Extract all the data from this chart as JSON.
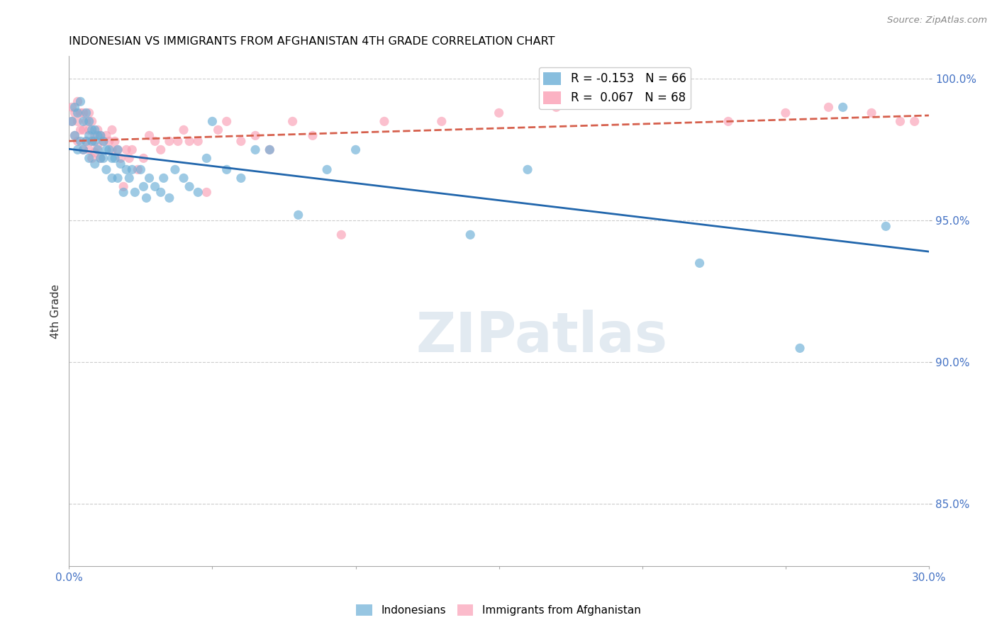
{
  "title": "INDONESIAN VS IMMIGRANTS FROM AFGHANISTAN 4TH GRADE CORRELATION CHART",
  "source": "Source: ZipAtlas.com",
  "ylabel": "4th Grade",
  "xlim": [
    0.0,
    0.3
  ],
  "ylim": [
    0.828,
    1.008
  ],
  "y_ticks": [
    0.85,
    0.9,
    0.95,
    1.0
  ],
  "y_tick_labels": [
    "85.0%",
    "90.0%",
    "95.0%",
    "100.0%"
  ],
  "x_tick_positions": [
    0.0,
    0.05,
    0.1,
    0.15,
    0.2,
    0.25,
    0.3
  ],
  "x_tick_labels": [
    "0.0%",
    "",
    "",
    "",
    "",
    "",
    "30.0%"
  ],
  "legend_line1": "R = -0.153   N = 66",
  "legend_line2": "R =  0.067   N = 68",
  "blue_color": "#6baed6",
  "pink_color": "#fa9fb5",
  "line_blue_color": "#2166ac",
  "line_pink_color": "#d6604d",
  "watermark": "ZIPatlas",
  "indonesians_label": "Indonesians",
  "afghanistan_label": "Immigrants from Afghanistan",
  "blue_scatter_x": [
    0.001,
    0.002,
    0.002,
    0.003,
    0.003,
    0.004,
    0.004,
    0.005,
    0.005,
    0.006,
    0.006,
    0.007,
    0.007,
    0.007,
    0.008,
    0.008,
    0.009,
    0.009,
    0.009,
    0.01,
    0.01,
    0.011,
    0.011,
    0.012,
    0.012,
    0.013,
    0.013,
    0.014,
    0.015,
    0.015,
    0.016,
    0.017,
    0.017,
    0.018,
    0.019,
    0.02,
    0.021,
    0.022,
    0.023,
    0.025,
    0.026,
    0.027,
    0.028,
    0.03,
    0.032,
    0.033,
    0.035,
    0.037,
    0.04,
    0.042,
    0.045,
    0.048,
    0.05,
    0.055,
    0.06,
    0.065,
    0.07,
    0.08,
    0.09,
    0.1,
    0.14,
    0.16,
    0.22,
    0.255,
    0.27,
    0.285
  ],
  "blue_scatter_y": [
    0.985,
    0.99,
    0.98,
    0.988,
    0.975,
    0.992,
    0.978,
    0.985,
    0.975,
    0.988,
    0.978,
    0.985,
    0.98,
    0.972,
    0.982,
    0.978,
    0.982,
    0.978,
    0.97,
    0.98,
    0.975,
    0.98,
    0.972,
    0.978,
    0.972,
    0.975,
    0.968,
    0.975,
    0.972,
    0.965,
    0.972,
    0.975,
    0.965,
    0.97,
    0.96,
    0.968,
    0.965,
    0.968,
    0.96,
    0.968,
    0.962,
    0.958,
    0.965,
    0.962,
    0.96,
    0.965,
    0.958,
    0.968,
    0.965,
    0.962,
    0.96,
    0.972,
    0.985,
    0.968,
    0.965,
    0.975,
    0.975,
    0.952,
    0.968,
    0.975,
    0.945,
    0.968,
    0.935,
    0.905,
    0.99,
    0.948
  ],
  "pink_scatter_x": [
    0.001,
    0.001,
    0.002,
    0.002,
    0.003,
    0.003,
    0.003,
    0.004,
    0.004,
    0.005,
    0.005,
    0.005,
    0.006,
    0.006,
    0.007,
    0.007,
    0.007,
    0.008,
    0.008,
    0.008,
    0.009,
    0.009,
    0.01,
    0.01,
    0.011,
    0.011,
    0.012,
    0.013,
    0.014,
    0.015,
    0.015,
    0.016,
    0.017,
    0.018,
    0.019,
    0.02,
    0.021,
    0.022,
    0.024,
    0.026,
    0.028,
    0.03,
    0.032,
    0.035,
    0.038,
    0.04,
    0.042,
    0.045,
    0.048,
    0.052,
    0.055,
    0.06,
    0.065,
    0.07,
    0.078,
    0.085,
    0.095,
    0.11,
    0.13,
    0.15,
    0.17,
    0.21,
    0.23,
    0.25,
    0.265,
    0.28,
    0.29,
    0.295
  ],
  "pink_scatter_y": [
    0.99,
    0.985,
    0.988,
    0.98,
    0.992,
    0.985,
    0.978,
    0.988,
    0.982,
    0.988,
    0.982,
    0.975,
    0.985,
    0.978,
    0.988,
    0.982,
    0.975,
    0.985,
    0.978,
    0.972,
    0.98,
    0.974,
    0.982,
    0.976,
    0.98,
    0.972,
    0.978,
    0.98,
    0.978,
    0.982,
    0.975,
    0.978,
    0.975,
    0.972,
    0.962,
    0.975,
    0.972,
    0.975,
    0.968,
    0.972,
    0.98,
    0.978,
    0.975,
    0.978,
    0.978,
    0.982,
    0.978,
    0.978,
    0.96,
    0.982,
    0.985,
    0.978,
    0.98,
    0.975,
    0.985,
    0.98,
    0.945,
    0.985,
    0.985,
    0.988,
    0.99,
    0.992,
    0.985,
    0.988,
    0.99,
    0.988,
    0.985,
    0.985
  ]
}
